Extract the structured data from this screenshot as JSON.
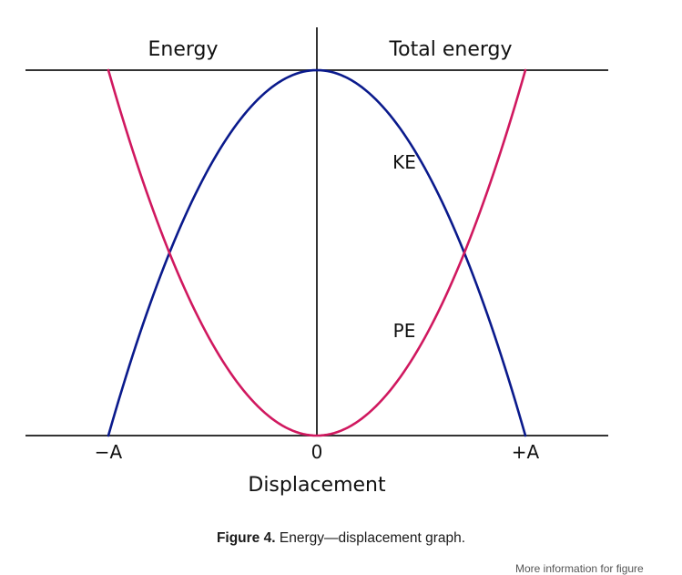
{
  "chart_data": {
    "type": "line",
    "xlabel": "Displacement",
    "ylabel": "Energy",
    "x_ticks": [
      "−A",
      "0",
      "+A"
    ],
    "xlim": [
      -1,
      1
    ],
    "ylim": [
      0,
      1
    ],
    "total_energy_label": "Total energy",
    "total_energy_value": 1,
    "series": [
      {
        "name": "KE",
        "color": "#0a1a8c",
        "x": [
          -1,
          -0.75,
          -0.5,
          -0.25,
          0,
          0.25,
          0.5,
          0.75,
          1
        ],
        "y": [
          0,
          0.4375,
          0.75,
          0.9375,
          1,
          0.9375,
          0.75,
          0.4375,
          0
        ]
      },
      {
        "name": "PE",
        "color": "#d0185f",
        "x": [
          -1,
          -0.75,
          -0.5,
          -0.25,
          0,
          0.25,
          0.5,
          0.75,
          1
        ],
        "y": [
          1,
          0.5625,
          0.25,
          0.0625,
          0,
          0.0625,
          0.25,
          0.5625,
          1
        ]
      }
    ]
  },
  "caption": {
    "label": "Figure 4.",
    "text": "Energy—displacement graph."
  },
  "footnote": "More information for figure"
}
